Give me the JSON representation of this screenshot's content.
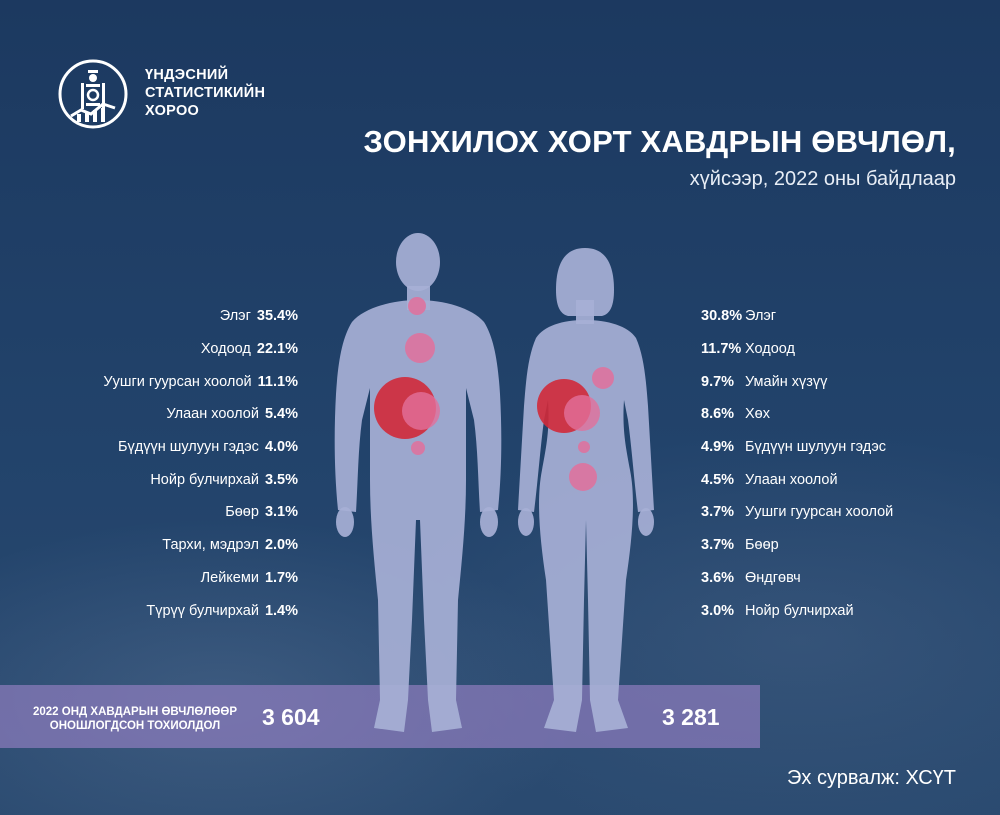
{
  "organization": {
    "name_lines": [
      "ҮНДЭСНИЙ",
      "СТАТИСТИКИЙН",
      "ХОРОО"
    ]
  },
  "title": "ЗОНХИЛОХ ХОРТ ХАВДРЫН ӨВЧЛӨЛ,",
  "subtitle": "хүйсээр, 2022 оны байдлаар",
  "male_list": [
    {
      "name": "Элэг",
      "pct": "35.4%"
    },
    {
      "name": "Ходоод",
      "pct": "22.1%"
    },
    {
      "name": "Уушги гуурсан хоолой",
      "pct": "11.1%"
    },
    {
      "name": "Улаан хоолой",
      "pct": "5.4%"
    },
    {
      "name": "Бүдүүн шулуун гэдэс",
      "pct": "4.0%"
    },
    {
      "name": "Нойр булчирхай",
      "pct": "3.5%"
    },
    {
      "name": "Бөөр",
      "pct": "3.1%"
    },
    {
      "name": "Тархи, мэдрэл",
      "pct": "2.0%"
    },
    {
      "name": "Лейкеми",
      "pct": "1.7%"
    },
    {
      "name": "Түрүү булчирхай",
      "pct": "1.4%"
    }
  ],
  "female_list": [
    {
      "name": "Элэг",
      "pct": "30.8%"
    },
    {
      "name": "Ходоод",
      "pct": "11.7%"
    },
    {
      "name": "Умайн хүзүү",
      "pct": "9.7%"
    },
    {
      "name": "Хөх",
      "pct": "8.6%"
    },
    {
      "name": "Бүдүүн шулуун гэдэс",
      "pct": "4.9%"
    },
    {
      "name": "Улаан хоолой",
      "pct": "4.5%"
    },
    {
      "name": "Уушги гуурсан хоолой",
      "pct": "3.7%"
    },
    {
      "name": "Бөөр",
      "pct": "3.7%"
    },
    {
      "name": "Өндгөвч",
      "pct": "3.6%"
    },
    {
      "name": "Нойр булчирхай",
      "pct": "3.0%"
    }
  ],
  "totals": {
    "label_lines": [
      "2022 ОНД ХАВДАРЫН ӨВЧЛӨЛӨӨР",
      "ОНОШЛОГДСОН ТОХИОЛДОЛ"
    ],
    "male": "3 604",
    "female": "3 281"
  },
  "source": "Эх сурвалж: ХСҮТ",
  "colors": {
    "background": "#1f3e63",
    "body_silhouette": "#a7b0d6",
    "major_site": "#d22a3a",
    "minor_site": "#e2709b",
    "band": "#9b82c8"
  },
  "icons": [
    "soyombo-emblem-icon",
    "male-body-figure",
    "female-body-figure"
  ]
}
